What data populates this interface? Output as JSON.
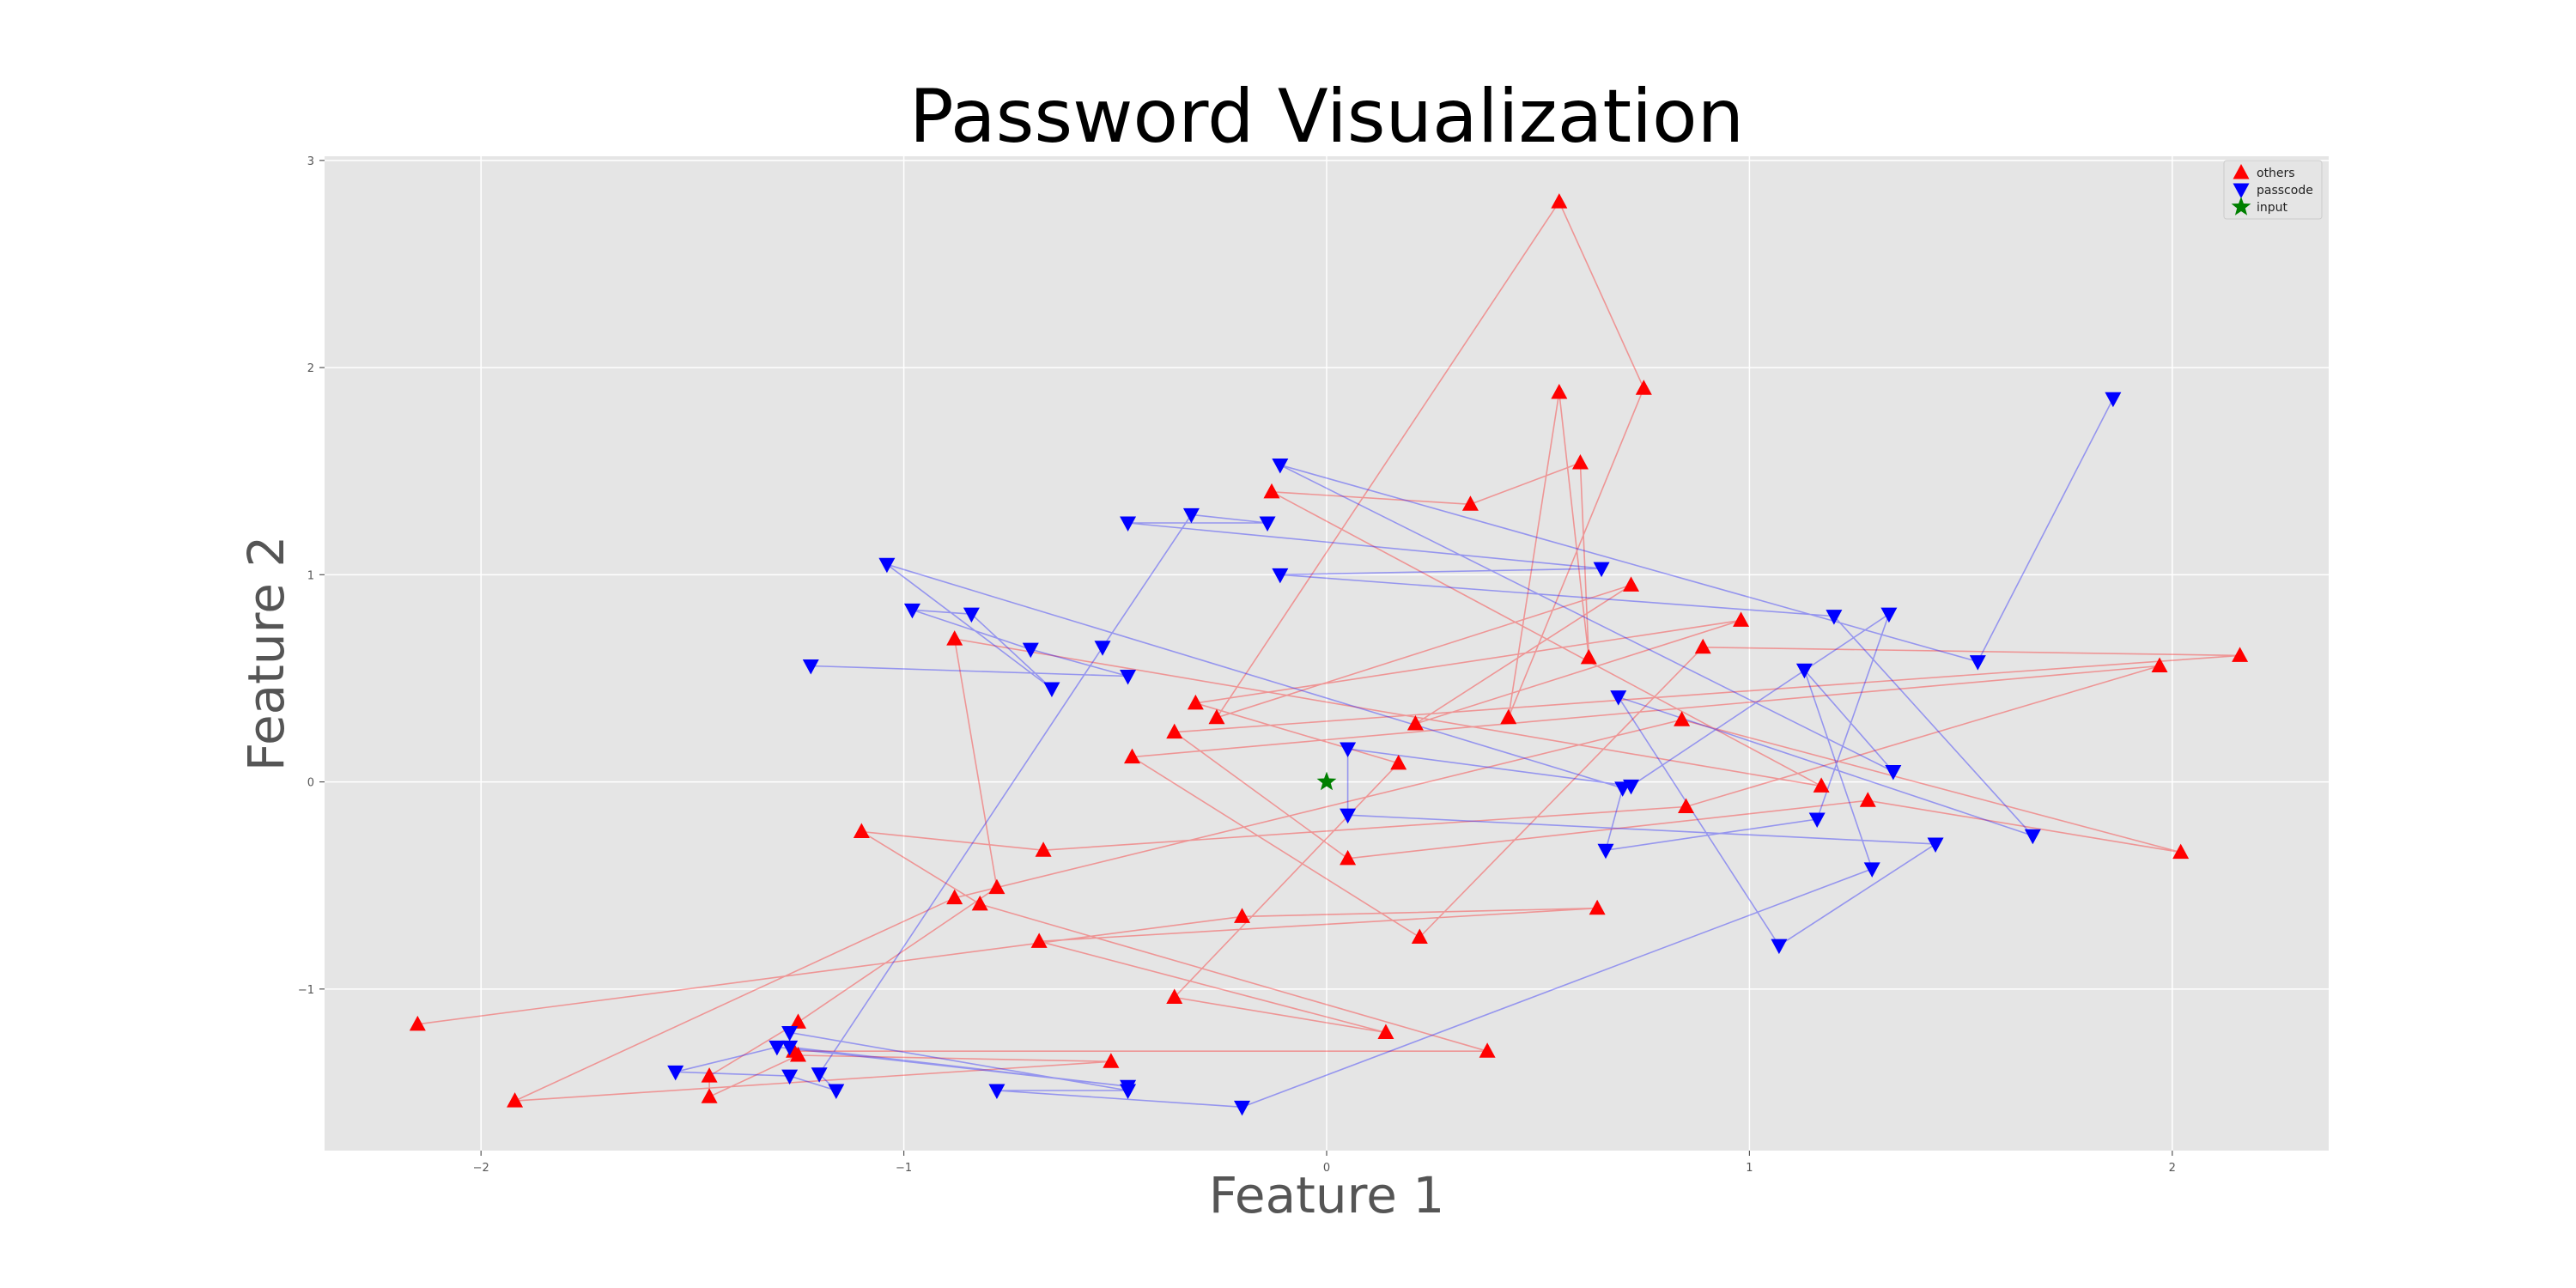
{
  "chart_data": {
    "type": "scatter",
    "title": "Password Visualization",
    "xlabel": "Feature 1",
    "ylabel": "Feature 2",
    "xlim": [
      -2.37,
      2.37
    ],
    "ylim": [
      -1.78,
      3.02
    ],
    "xticks": [
      -2,
      -1,
      0,
      1,
      2
    ],
    "yticks": [
      -1,
      0,
      1,
      2,
      3
    ],
    "grid": true,
    "legend_position": "top-right",
    "colors": {
      "others": "#ff0000",
      "passcode": "#0000ff",
      "input": "#008000"
    },
    "series": [
      {
        "name": "others",
        "marker": "triangle-up",
        "connected": true,
        "points": [
          [
            -2.15,
            -1.17
          ],
          [
            -0.2,
            -0.65
          ],
          [
            0.64,
            -0.61
          ],
          [
            -0.68,
            -0.77
          ],
          [
            0.14,
            -1.21
          ],
          [
            -0.36,
            -1.04
          ],
          [
            0.17,
            0.09
          ],
          [
            -0.31,
            0.38
          ],
          [
            0.98,
            0.78
          ],
          [
            0.21,
            0.28
          ],
          [
            0.72,
            0.95
          ],
          [
            -0.26,
            0.31
          ],
          [
            0.55,
            2.8
          ],
          [
            0.75,
            1.9
          ],
          [
            0.43,
            0.31
          ],
          [
            0.55,
            1.88
          ],
          [
            0.62,
            0.6
          ],
          [
            0.6,
            1.54
          ],
          [
            0.34,
            1.34
          ],
          [
            -0.13,
            1.4
          ],
          [
            1.17,
            -0.02
          ],
          [
            -0.88,
            0.69
          ],
          [
            -0.78,
            -0.51
          ],
          [
            -1.25,
            -1.16
          ],
          [
            -1.46,
            -1.42
          ],
          [
            -1.46,
            -1.52
          ],
          [
            -1.25,
            -1.32
          ],
          [
            -0.51,
            -1.35
          ],
          [
            -1.92,
            -1.54
          ],
          [
            -0.88,
            -0.56
          ],
          [
            0.84,
            0.3
          ],
          [
            2.02,
            -0.34
          ],
          [
            1.28,
            -0.09
          ],
          [
            0.05,
            -0.37
          ],
          [
            -0.36,
            0.24
          ],
          [
            2.16,
            0.61
          ],
          [
            0.89,
            0.65
          ],
          [
            0.22,
            -0.75
          ],
          [
            -0.46,
            0.12
          ],
          [
            1.97,
            0.56
          ],
          [
            0.85,
            -0.12
          ],
          [
            -0.67,
            -0.33
          ],
          [
            -1.1,
            -0.24
          ],
          [
            -0.82,
            -0.59
          ],
          [
            0.38,
            -1.3
          ],
          [
            -1.26,
            -1.3
          ]
        ]
      },
      {
        "name": "passcode",
        "marker": "triangle-down",
        "connected": true,
        "points": [
          [
            1.86,
            1.85
          ],
          [
            1.54,
            0.58
          ],
          [
            -0.11,
            1.53
          ],
          [
            1.34,
            0.05
          ],
          [
            1.13,
            0.54
          ],
          [
            1.29,
            -0.42
          ],
          [
            -0.2,
            -1.57
          ],
          [
            -0.78,
            -1.49
          ],
          [
            -0.47,
            -1.49
          ],
          [
            -1.27,
            -1.21
          ],
          [
            -1.27,
            -1.28
          ],
          [
            -0.47,
            -1.47
          ],
          [
            -1.3,
            -1.28
          ],
          [
            -1.54,
            -1.4
          ],
          [
            -1.27,
            -1.42
          ],
          [
            -1.16,
            -1.49
          ],
          [
            -1.2,
            -1.41
          ],
          [
            -0.53,
            0.65
          ],
          [
            -0.32,
            1.29
          ],
          [
            -0.14,
            1.25
          ],
          [
            -0.47,
            1.25
          ],
          [
            0.65,
            1.03
          ],
          [
            -0.11,
            1.0
          ],
          [
            1.2,
            0.8
          ],
          [
            1.67,
            -0.26
          ],
          [
            0.69,
            0.41
          ],
          [
            1.07,
            -0.79
          ],
          [
            1.44,
            -0.3
          ],
          [
            0.05,
            -0.16
          ],
          [
            0.05,
            0.16
          ],
          [
            0.72,
            -0.02
          ],
          [
            1.33,
            0.81
          ],
          [
            1.16,
            -0.18
          ],
          [
            0.66,
            -0.33
          ],
          [
            0.7,
            -0.03
          ],
          [
            -1.04,
            1.05
          ],
          [
            -0.65,
            0.45
          ],
          [
            -0.84,
            0.81
          ],
          [
            -0.98,
            0.83
          ],
          [
            -0.7,
            0.64
          ],
          [
            -0.47,
            0.51
          ],
          [
            -1.22,
            0.56
          ]
        ]
      },
      {
        "name": "input",
        "marker": "star",
        "connected": false,
        "points": [
          [
            0.0,
            0.0
          ]
        ]
      }
    ]
  }
}
